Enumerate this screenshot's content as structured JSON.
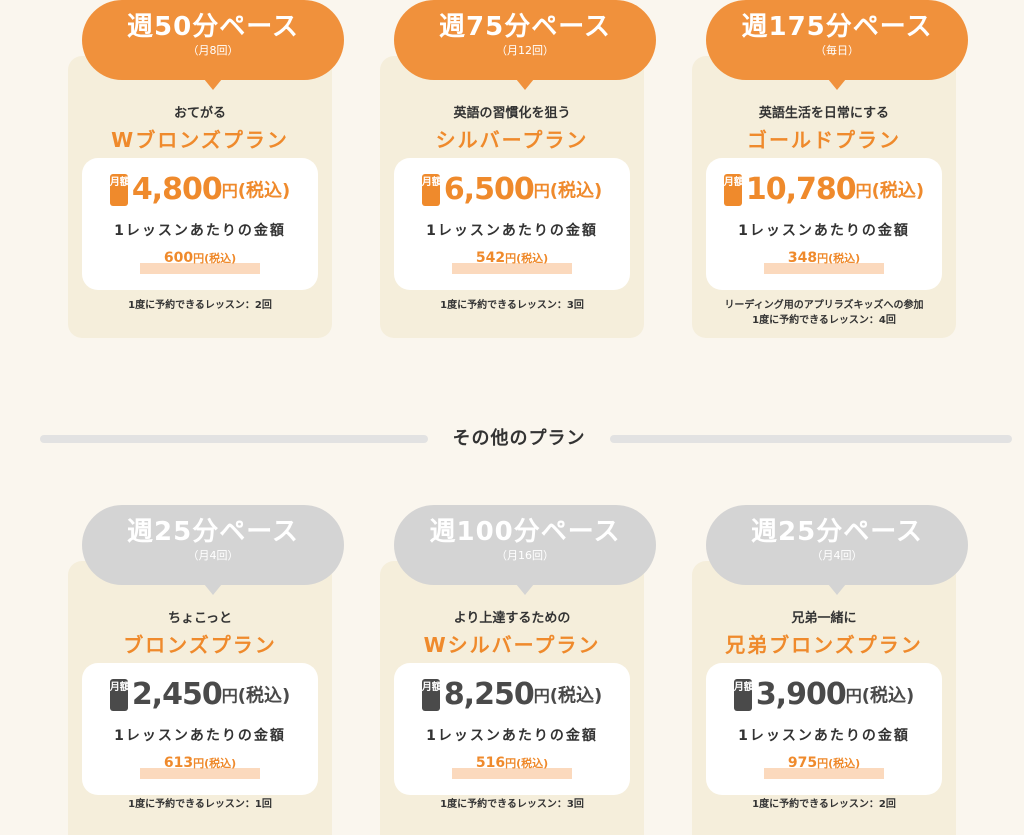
{
  "main_plans": [
    {
      "pace": "週50分ペース",
      "pace_sub": "（月8回）",
      "tagline": "おてがる",
      "name": "Wブロンズプラン",
      "month_badge": "月額",
      "price": "4,800",
      "yen": "円",
      "tax": "(税込)",
      "per_label": "1レッスンあたりの金額",
      "per_price": "600",
      "per_yen": "円(税込)",
      "footnote": [
        "1度に予約できるレッスン：2回"
      ]
    },
    {
      "pace": "週75分ペース",
      "pace_sub": "（月12回）",
      "tagline": "英語の習慣化を狙う",
      "name": "シルバープラン",
      "month_badge": "月額",
      "price": "6,500",
      "yen": "円",
      "tax": "(税込)",
      "per_label": "1レッスンあたりの金額",
      "per_price": "542",
      "per_yen": "円(税込)",
      "footnote": [
        "1度に予約できるレッスン：3回"
      ]
    },
    {
      "pace": "週175分ペース",
      "pace_sub": "（毎日）",
      "tagline": "英語生活を日常にする",
      "name": "ゴールドプラン",
      "month_badge": "月額",
      "price": "10,780",
      "yen": "円",
      "tax": "(税込)",
      "per_label": "1レッスンあたりの金額",
      "per_price": "348",
      "per_yen": "円(税込)",
      "footnote": [
        "リーディング用のアプリラズキッズへの参加",
        "1度に予約できるレッスン：4回"
      ]
    }
  ],
  "other_title": "その他のプラン",
  "other_plans": [
    {
      "pace": "週25分ペース",
      "pace_sub": "（月4回）",
      "tagline": "ちょこっと",
      "name": "ブロンズプラン",
      "month_badge": "月額",
      "price": "2,450",
      "yen": "円",
      "tax": "(税込)",
      "per_label": "1レッスンあたりの金額",
      "per_price": "613",
      "per_yen": "円(税込)",
      "footnote": [
        "1度に予約できるレッスン：1回"
      ]
    },
    {
      "pace": "週100分ペース",
      "pace_sub": "（月16回）",
      "tagline": "より上達するための",
      "name": "Wシルバープラン",
      "month_badge": "月額",
      "price": "8,250",
      "yen": "円",
      "tax": "(税込)",
      "per_label": "1レッスンあたりの金額",
      "per_price": "516",
      "per_yen": "円(税込)",
      "footnote": [
        "1度に予約できるレッスン：3回"
      ]
    },
    {
      "pace": "週25分ペース",
      "pace_sub": "（月4回）",
      "tagline": "兄弟一緒に",
      "name": "兄弟ブロンズプラン",
      "month_badge": "月額",
      "price": "3,900",
      "yen": "円",
      "tax": "(税込)",
      "per_label": "1レッスンあたりの金額",
      "per_price": "975",
      "per_yen": "円(税込)",
      "footnote": [
        "1度に予約できるレッスン：2回"
      ]
    }
  ],
  "colors": {
    "accent_orange": "#ef8a2c",
    "pace_orange": "#f0913c",
    "pace_gray": "#d4d4d4",
    "card_bg": "#f5eedb",
    "page_bg": "#faf6ee",
    "highlight": "#fbd9bd"
  }
}
